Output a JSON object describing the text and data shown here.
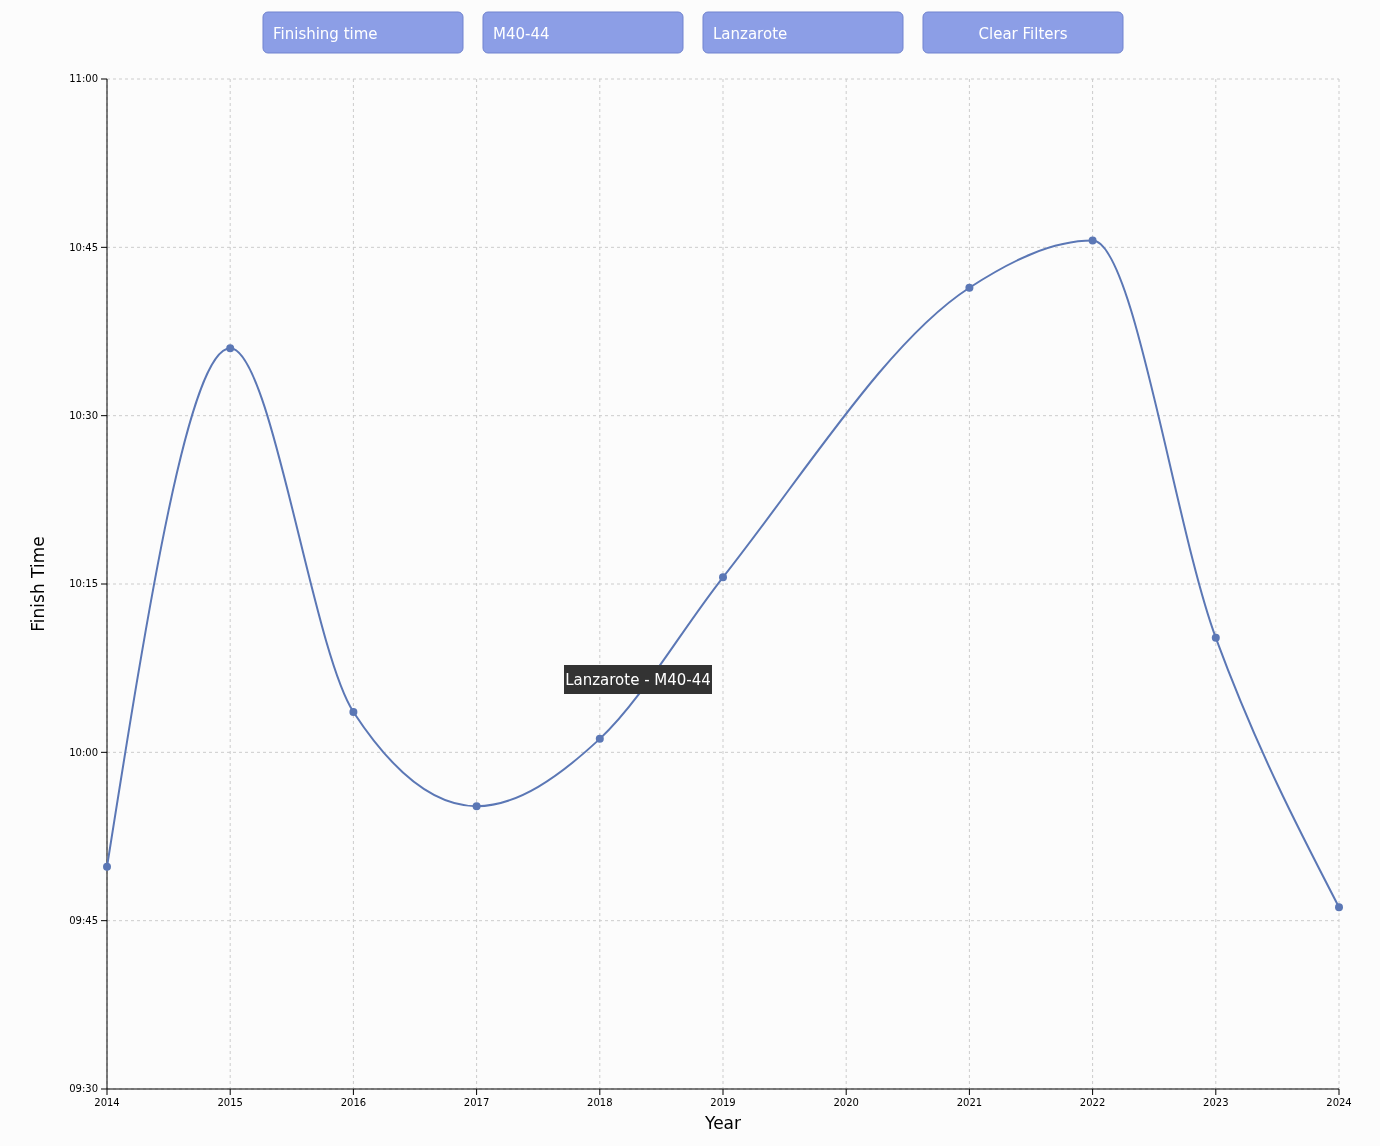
{
  "chart_data": {
    "type": "line",
    "xlabel": "Year",
    "ylabel": "Finish Time",
    "x": [
      2014,
      2015,
      2016,
      2017,
      2018,
      2019,
      2021,
      2022,
      2023,
      2024
    ],
    "series": [
      {
        "color": "#5b77b5",
        "values": [
          9.83,
          10.6,
          10.06,
          9.92,
          10.02,
          10.26,
          10.69,
          10.76,
          10.17,
          9.77
        ]
      }
    ],
    "xlim": [
      2014,
      2024
    ],
    "xticks": [
      2014,
      2015,
      2016,
      2017,
      2018,
      2019,
      2020,
      2021,
      2022,
      2023,
      2024
    ],
    "ylim": [
      9.5,
      11
    ],
    "yticks": [
      {
        "value": 9.5,
        "label": "09:30"
      },
      {
        "value": 9.75,
        "label": "09:45"
      },
      {
        "value": 10,
        "label": "10:00"
      },
      {
        "value": 10.25,
        "label": "10:15"
      },
      {
        "value": 10.5,
        "label": "10:30"
      },
      {
        "value": 10.75,
        "label": "10:45"
      },
      {
        "value": 11,
        "label": "11:00"
      }
    ],
    "grid": true,
    "marker": "circle",
    "line_style": "solid",
    "annotations": [
      "Finishing time",
      "M40-44",
      "Lanzarote",
      "Clear Filters",
      "Lanzarote - M40-44"
    ]
  }
}
